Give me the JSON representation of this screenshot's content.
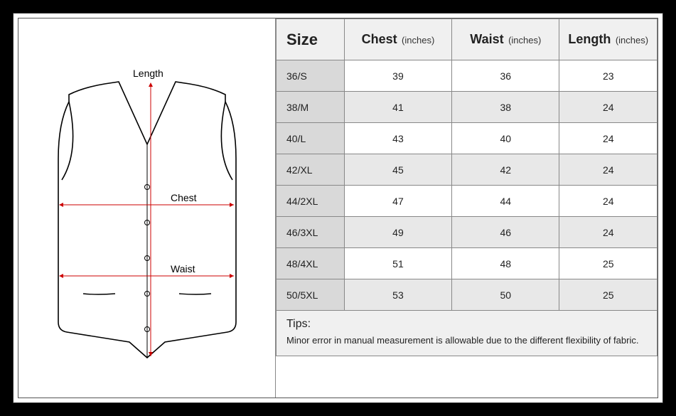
{
  "diagram": {
    "labels": {
      "length": "Length",
      "chest": "Chest",
      "waist": "Waist"
    },
    "outline_color": "#000000",
    "measure_line_color": "#cc0000",
    "background": "#ffffff"
  },
  "table": {
    "headers": {
      "size": "Size",
      "chest": "Chest",
      "waist": "Waist",
      "length": "Length",
      "unit": "(inches)"
    },
    "columns": [
      "size",
      "chest",
      "waist",
      "length"
    ],
    "rows": [
      {
        "size": "36/S",
        "chest": "39",
        "waist": "36",
        "length": "23"
      },
      {
        "size": "38/M",
        "chest": "41",
        "waist": "38",
        "length": "24"
      },
      {
        "size": "40/L",
        "chest": "43",
        "waist": "40",
        "length": "24"
      },
      {
        "size": "42/XL",
        "chest": "45",
        "waist": "42",
        "length": "24"
      },
      {
        "size": "44/2XL",
        "chest": "47",
        "waist": "44",
        "length": "24"
      },
      {
        "size": "46/3XL",
        "chest": "49",
        "waist": "46",
        "length": "24"
      },
      {
        "size": "48/4XL",
        "chest": "51",
        "waist": "48",
        "length": "25"
      },
      {
        "size": "50/5XL",
        "chest": "53",
        "waist": "50",
        "length": "25"
      }
    ],
    "header_bg": "#f0f0f0",
    "size_col_bg": "#d9d9d9",
    "alt_row_bg": "#e8e8e8",
    "border_color": "#888888",
    "font_size_header_main": 18,
    "font_size_header_unit": 13,
    "font_size_cell": 14
  },
  "tips": {
    "title": "Tips:",
    "text": "Minor error in manual measurement is allowable due to the different flexibility of fabric."
  },
  "frame": {
    "outer_bg": "#000000",
    "inner_bg": "#ffffff"
  }
}
